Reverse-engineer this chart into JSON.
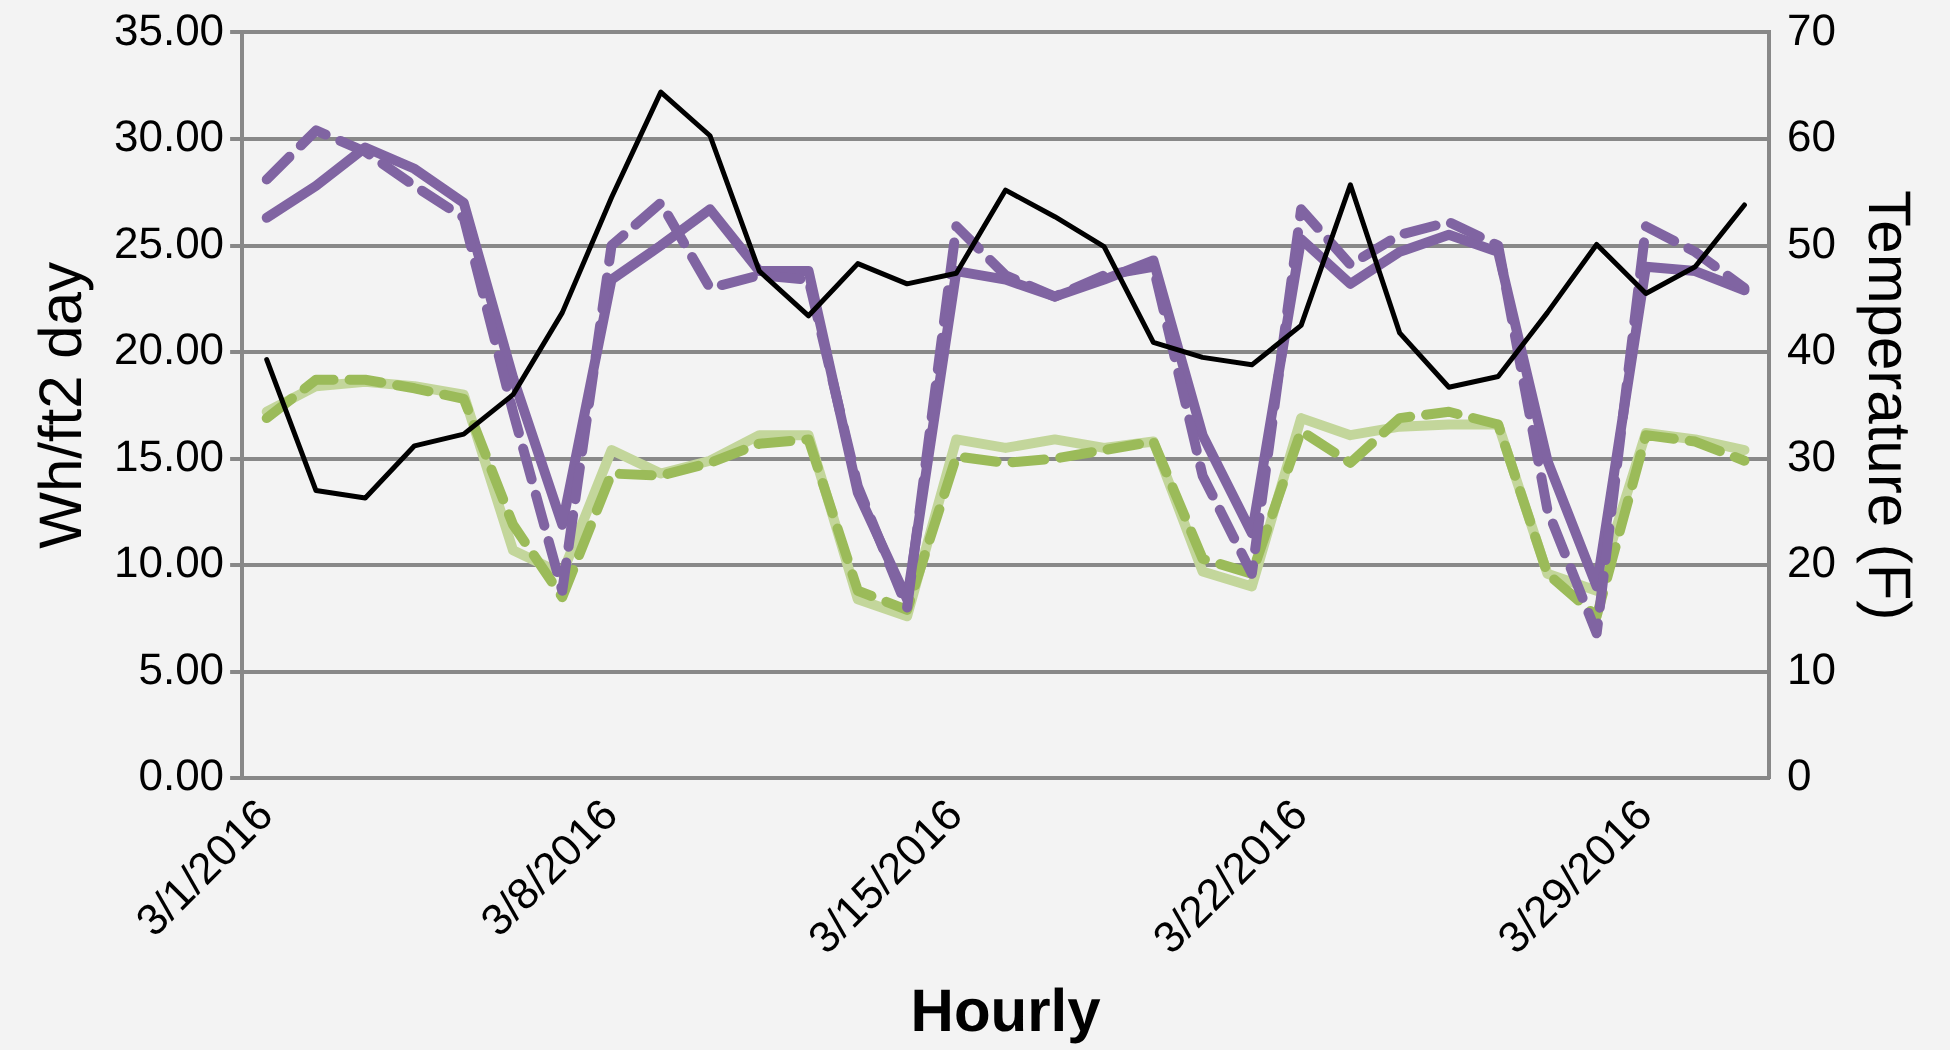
{
  "chart_data": {
    "type": "line",
    "xlabel": "Hourly",
    "ylabel": "Wh/ft2 day",
    "y2label": "Temperature (F)",
    "categories": [
      "3/1/2016",
      null,
      null,
      null,
      null,
      null,
      null,
      "3/8/2016",
      null,
      null,
      null,
      null,
      null,
      null,
      "3/15/2016",
      null,
      null,
      null,
      null,
      null,
      null,
      "3/22/2016",
      null,
      null,
      null,
      null,
      null,
      null,
      "3/29/2016",
      null,
      null
    ],
    "ylim": [
      0,
      35
    ],
    "yticks": [
      {
        "value": 0,
        "label": "0.00"
      },
      {
        "value": 5,
        "label": "5.00"
      },
      {
        "value": 10,
        "label": "10.00"
      },
      {
        "value": 15,
        "label": "15.00"
      },
      {
        "value": 20,
        "label": "20.00"
      },
      {
        "value": 25,
        "label": "25.00"
      },
      {
        "value": 30,
        "label": "30.00"
      },
      {
        "value": 35,
        "label": "35.00"
      }
    ],
    "y2lim": [
      0,
      70
    ],
    "y2ticks": [
      0,
      10,
      20,
      30,
      40,
      50,
      60,
      70
    ],
    "grid": "y",
    "legend": false,
    "marker": "none",
    "series": [
      {
        "color": "#c3d69b",
        "line_style": "solid",
        "values": [
          17.2,
          18.4,
          18.6,
          18.4,
          18,
          10.7,
          9.6,
          15.4,
          14.3,
          14.9,
          16.1,
          16.1,
          8.4,
          7.6,
          15.9,
          15.5,
          15.9,
          15.5,
          15.8,
          9.7,
          9,
          16.9,
          16.1,
          16.5,
          16.6,
          16.6,
          9.6,
          8.8,
          16.2,
          15.9,
          15.4
        ]
      },
      {
        "color": "#9bbb59",
        "line_style": "dashed",
        "values": [
          16.9,
          18.7,
          18.7,
          18.3,
          17.8,
          11.9,
          8.5,
          14.3,
          14.2,
          14.8,
          15.7,
          15.9,
          8.8,
          7.9,
          15.1,
          14.8,
          15,
          15.4,
          15.8,
          10.3,
          9.6,
          16.3,
          14.8,
          16.9,
          17.2,
          16.6,
          9.6,
          7.6,
          16.1,
          15.8,
          14.9
        ]
      },
      {
        "color": "#8064a2",
        "line_style": "solid",
        "values": [
          26.3,
          27.8,
          29.6,
          28.6,
          27,
          18.8,
          11.9,
          23.4,
          25,
          26.7,
          23.8,
          23.8,
          13.4,
          8.4,
          23.8,
          23.4,
          22.6,
          23.4,
          24.3,
          16.1,
          11.5,
          25.3,
          23.2,
          24.7,
          25.5,
          24.7,
          14.9,
          9,
          24,
          23.8,
          22.9
        ]
      },
      {
        "color": "#8064a2",
        "line_style": "dashed",
        "values": [
          28.1,
          30.4,
          29.4,
          27.8,
          26.3,
          17.2,
          8.8,
          25,
          27,
          23,
          23.6,
          23.4,
          13.7,
          8,
          25.9,
          23.6,
          22.6,
          23.6,
          24,
          14.2,
          9.6,
          26.7,
          24.1,
          25.5,
          26.1,
          25,
          12.6,
          6.8,
          25.9,
          24.7,
          23
        ]
      },
      {
        "color": "#000000",
        "line_style": "solid",
        "axis": "y2",
        "values": [
          39.3,
          27,
          26.3,
          31.2,
          32.3,
          36,
          43.7,
          54.5,
          64.4,
          60.3,
          47.6,
          43.4,
          48.3,
          46.4,
          47.4,
          55.2,
          52.7,
          49.9,
          40.9,
          39.5,
          38.8,
          42.5,
          55.7,
          41.8,
          36.7,
          37.7,
          43.7,
          50.1,
          45.5,
          48,
          53.8
        ]
      }
    ]
  }
}
